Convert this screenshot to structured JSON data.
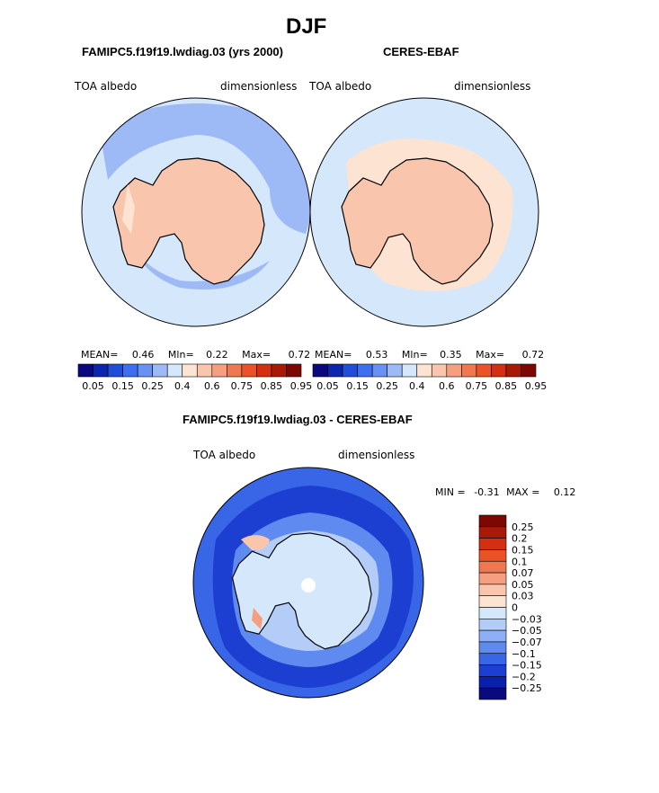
{
  "figure": {
    "title": "DJF",
    "colors": {
      "land_edge": "#000000",
      "background": "#ffffff"
    }
  },
  "panels": [
    {
      "id": "model",
      "title": "FAMIPC5.f19f19.lwdiag.03 (yrs 2000)",
      "left_label": "TOA albedo",
      "right_label": "dimensionless",
      "stats": {
        "mean_label": "MEAN=",
        "mean": "0.46",
        "min_label": "Mln=",
        "min": "0.22",
        "max_label": "Max=",
        "max": "0.72"
      }
    },
    {
      "id": "obs",
      "title": "CERES-EBAF",
      "left_label": "TOA albedo",
      "right_label": "dimensionless",
      "stats": {
        "mean_label": "MEAN=",
        "mean": "0.53",
        "min_label": "Mln=",
        "min": "0.35",
        "max_label": "Max=",
        "max": "0.72"
      }
    },
    {
      "id": "diff",
      "title": "FAMIPC5.f19f19.lwdiag.03 - CERES-EBAF",
      "left_label": "TOA albedo",
      "right_label": "dimensionless",
      "stats": {
        "min_label": "MIN =",
        "min": "-0.31",
        "max_label": "MAX =",
        "max": "0.12"
      }
    }
  ],
  "chart_data": [
    {
      "type": "heatmap",
      "projection": "south-polar-stereographic",
      "title": "FAMIPC5.f19f19.lwdiag.03 (yrs 2000)",
      "variable": "TOA albedo",
      "units": "dimensionless",
      "mean": 0.46,
      "min": 0.22,
      "max": 0.72,
      "contour_levels": [
        0.05,
        0.1,
        0.15,
        0.2,
        0.25,
        0.3,
        0.4,
        0.5,
        0.6,
        0.7,
        0.75,
        0.8,
        0.85,
        0.9,
        0.95
      ],
      "colorbar_tick_labels": [
        "0.05",
        "0.15",
        "0.25",
        "0.4",
        "0.6",
        "0.75",
        "0.85",
        "0.95"
      ],
      "fill_colors": [
        "#0a0a7e",
        "#0c26ad",
        "#1f4fd9",
        "#3d6ff0",
        "#6792f4",
        "#9dbaf6",
        "#d4e7fb",
        "#fde4d2",
        "#fac5ad",
        "#f59f80",
        "#f07850",
        "#ec5228",
        "#d42f10",
        "#a81a05",
        "#7d0803"
      ]
    },
    {
      "type": "heatmap",
      "projection": "south-polar-stereographic",
      "title": "CERES-EBAF",
      "variable": "TOA albedo",
      "units": "dimensionless",
      "mean": 0.53,
      "min": 0.35,
      "max": 0.72,
      "contour_levels": [
        0.05,
        0.1,
        0.15,
        0.2,
        0.25,
        0.3,
        0.4,
        0.5,
        0.6,
        0.7,
        0.75,
        0.8,
        0.85,
        0.9,
        0.95
      ],
      "colorbar_tick_labels": [
        "0.05",
        "0.15",
        "0.25",
        "0.4",
        "0.6",
        "0.75",
        "0.85",
        "0.95"
      ],
      "fill_colors": [
        "#0a0a7e",
        "#0c26ad",
        "#1f4fd9",
        "#3d6ff0",
        "#6792f4",
        "#9dbaf6",
        "#d4e7fb",
        "#fde4d2",
        "#fac5ad",
        "#f59f80",
        "#f07850",
        "#ec5228",
        "#d42f10",
        "#a81a05",
        "#7d0803"
      ]
    },
    {
      "type": "heatmap",
      "projection": "south-polar-stereographic",
      "title": "FAMIPC5.f19f19.lwdiag.03 - CERES-EBAF",
      "variable": "TOA albedo",
      "units": "dimensionless",
      "min": -0.31,
      "max": 0.12,
      "contour_levels": [
        -0.25,
        -0.2,
        -0.15,
        -0.1,
        -0.07,
        -0.05,
        -0.03,
        0,
        0.03,
        0.05,
        0.07,
        0.1,
        0.15,
        0.2,
        0.25
      ],
      "colorbar_tick_labels": [
        "0.25",
        "0.2",
        "0.15",
        "0.1",
        "0.07",
        "0.05",
        "0.03",
        "0",
        "−0.03",
        "−0.05",
        "−0.07",
        "−0.1",
        "−0.15",
        "−0.2",
        "−0.25"
      ],
      "fill_colors_top_to_bottom": [
        "#7d0803",
        "#a81a05",
        "#d42f10",
        "#ec5228",
        "#f07850",
        "#f59f80",
        "#fac5ad",
        "#fde4d2",
        "#d4e7fb",
        "#b3ccf8",
        "#8daff5",
        "#5f8aef",
        "#3966e6",
        "#1c3fd2",
        "#0a1fae",
        "#0a0a7e"
      ]
    }
  ]
}
